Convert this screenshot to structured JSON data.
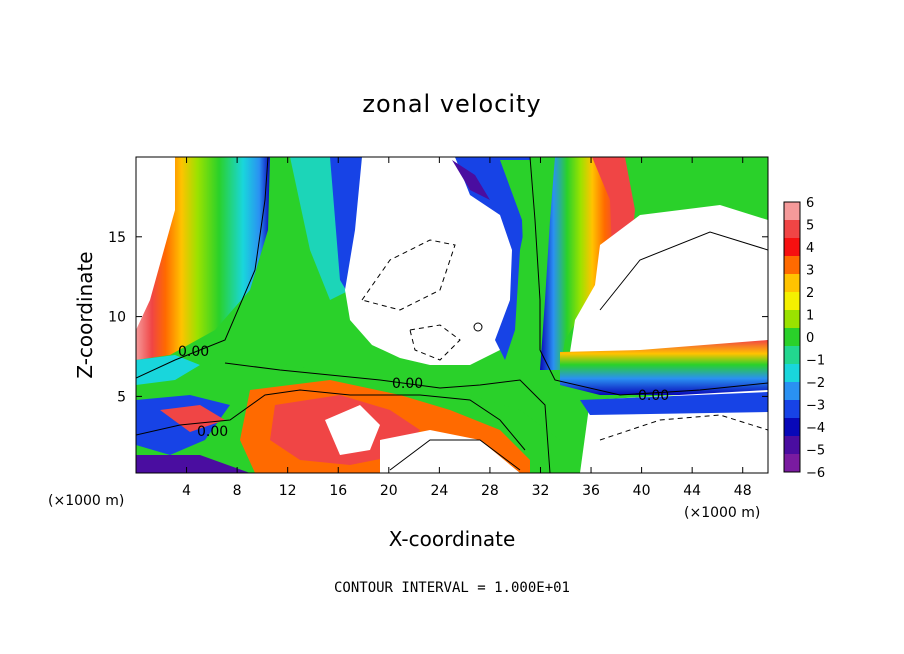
{
  "chart_data": {
    "type": "heatmap",
    "title": "zonal velocity",
    "xlabel": "X-coordinate",
    "ylabel": "Z-coordinate",
    "x_scale_note_left": "(×1000 m)",
    "x_scale_note_right": "(×1000 m)",
    "x_ticks": [
      4,
      8,
      12,
      16,
      20,
      24,
      28,
      32,
      36,
      40,
      44,
      48
    ],
    "y_ticks": [
      5,
      10,
      15
    ],
    "xlim": [
      0,
      50
    ],
    "ylim": [
      0.2,
      20
    ],
    "colorbar": {
      "ticks": [
        6,
        5,
        4,
        3,
        2,
        1,
        0,
        -1,
        -2,
        -3,
        -4,
        -5,
        -6
      ],
      "colors": [
        "#f59a9a",
        "#f04545",
        "#f61010",
        "#ff6a00",
        "#ffc300",
        "#f4f000",
        "#9ae200",
        "#2ad12a",
        "#22d78f",
        "#19d6dc",
        "#2a91f2",
        "#1743e6",
        "#0808b8",
        "#4a0da0",
        "#7a1ba0"
      ]
    },
    "contour_labels": [
      "0.00",
      "0.00",
      "0.00",
      "0.00"
    ],
    "contour_interval_text": "CONTOUR INTERVAL = 1.000E+01"
  }
}
